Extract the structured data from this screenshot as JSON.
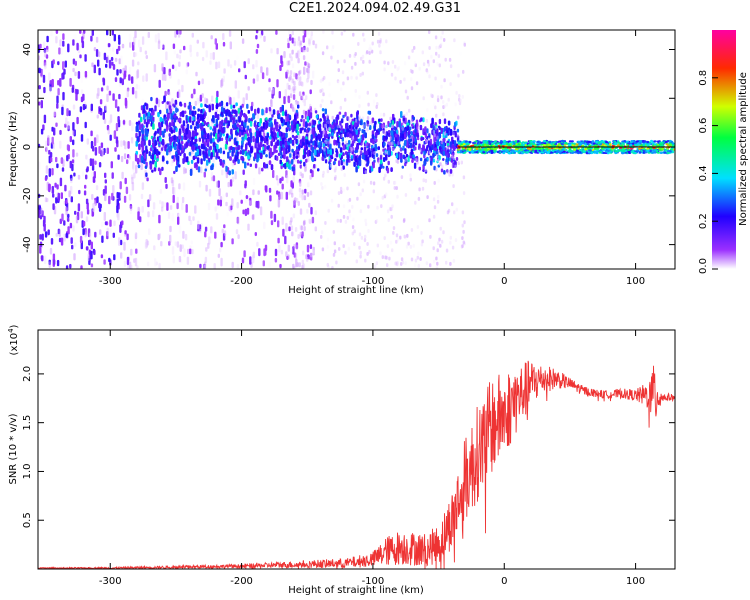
{
  "title": "C2E1.2024.094.02.49.G31",
  "chart_data": [
    {
      "type": "heatmap",
      "xlabel": "Height of straight line (km)",
      "ylabel": "Frequency (Hz)",
      "xlim": [
        -355,
        130
      ],
      "ylim": [
        -50,
        48
      ],
      "xticks": [
        -300,
        -200,
        -100,
        0,
        100
      ],
      "yticks": [
        -40,
        -20,
        0,
        20,
        40
      ],
      "colorbar": {
        "label": "Normalized spectral amplitude",
        "range": [
          0.0,
          1.0
        ],
        "ticks": [
          "0.0",
          "0.2",
          "0.4",
          "0.6",
          "0.8"
        ],
        "tick_values": [
          0.0,
          0.2,
          0.4,
          0.6,
          0.8
        ],
        "colors": [
          "#ffffff",
          "#7f00ff",
          "#0000ff",
          "#00ffff",
          "#00ff00",
          "#ffff00",
          "#ff0000",
          "#ff00ff"
        ]
      },
      "zero_line": 0
    },
    {
      "type": "line",
      "xlabel": "Height of straight line (km)",
      "ylabel": "SNR (10 * v/v)",
      "yscale_label": "(x10",
      "yscale_exp": "4",
      "yscale_close": ")",
      "xlim": [
        -355,
        130
      ],
      "ylim": [
        0,
        2.45
      ],
      "xticks": [
        -300,
        -200,
        -100,
        0,
        100
      ],
      "yticks": [
        "0.5",
        "1.0",
        "1.5",
        "2.0"
      ],
      "ytick_values": [
        0.5,
        1.0,
        1.5,
        2.0
      ],
      "color": "#ee3333",
      "envelope": {
        "x": [
          -355,
          -300,
          -200,
          -150,
          -120,
          -100,
          -90,
          -80,
          -60,
          -50,
          -40,
          -30,
          -20,
          -10,
          0,
          10,
          20,
          30,
          40,
          50,
          60,
          70,
          80,
          90,
          100,
          110,
          115,
          120,
          130
        ],
        "y": [
          0.01,
          0.01,
          0.03,
          0.05,
          0.06,
          0.1,
          0.18,
          0.22,
          0.2,
          0.25,
          0.5,
          0.9,
          1.2,
          1.45,
          1.6,
          1.75,
          1.9,
          1.95,
          1.95,
          1.9,
          1.83,
          1.8,
          1.79,
          1.8,
          1.78,
          1.78,
          1.8,
          1.76,
          1.76
        ],
        "noise": [
          0.005,
          0.008,
          0.02,
          0.04,
          0.05,
          0.08,
          0.15,
          0.18,
          0.17,
          0.2,
          0.3,
          0.45,
          0.5,
          0.5,
          0.45,
          0.35,
          0.25,
          0.15,
          0.1,
          0.06,
          0.05,
          0.04,
          0.04,
          0.05,
          0.06,
          0.15,
          0.35,
          0.05,
          0.03
        ]
      }
    }
  ]
}
